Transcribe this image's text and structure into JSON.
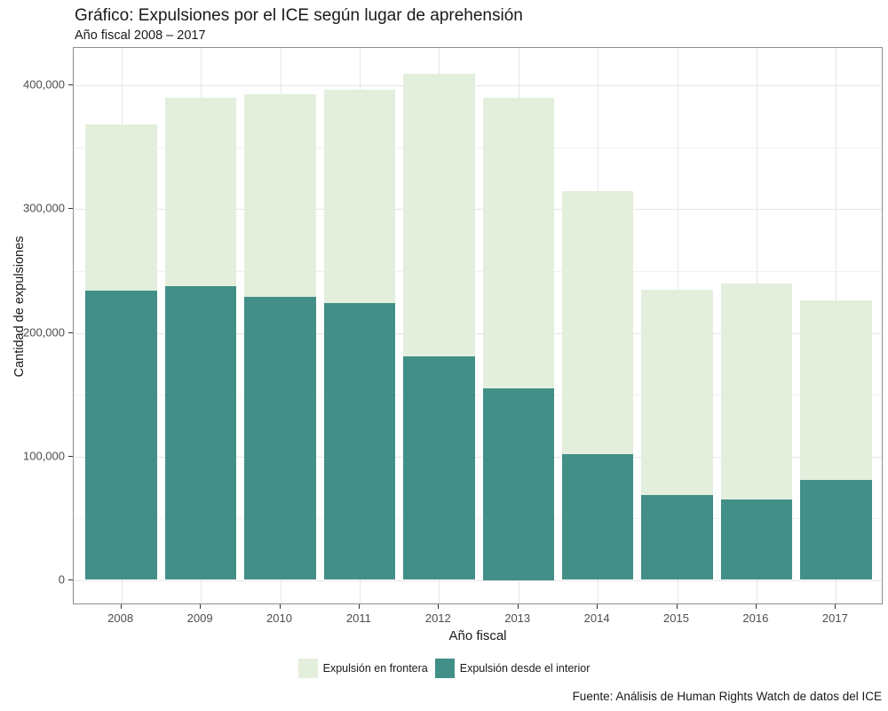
{
  "header": {
    "title": "Gráfico: Expulsiones por el ICE según lugar de aprehensión",
    "subtitle": "Año fiscal 2008 – 2017"
  },
  "caption": "Fuente: Análisis de Human Rights Watch de datos del ICE",
  "colors": {
    "border_series_fill": "#e3efdc",
    "interior_series_fill": "#428f88",
    "panel_border": "#8c8c8c",
    "grid_major": "#e6e6e6",
    "grid_minor": "#f2f2f2",
    "tick_mark": "#333333",
    "tick_label": "#4d4d4d",
    "text": "#1a1a1a",
    "background": "#ffffff"
  },
  "chart_data": {
    "type": "bar",
    "stacked": true,
    "title": "Gráfico: Expulsiones por el ICE según lugar de aprehensión",
    "subtitle": "Año fiscal 2008 – 2017",
    "xlabel": "Año fiscal",
    "ylabel": "Cantidad de expulsiones",
    "categories": [
      "2008",
      "2009",
      "2010",
      "2011",
      "2012",
      "2013",
      "2014",
      "2015",
      "2016",
      "2017"
    ],
    "series": [
      {
        "name": "Expulsión en frontera",
        "color": "#e3efdc",
        "stack_position": "top",
        "values": [
          135000,
          152000,
          164000,
          173000,
          229000,
          235000,
          213000,
          166000,
          175000,
          145000
        ]
      },
      {
        "name": "Expulsión desde el interior",
        "color": "#428f88",
        "stack_position": "bottom",
        "values": [
          234000,
          238000,
          229000,
          224000,
          181000,
          155000,
          102000,
          69000,
          65000,
          81000
        ]
      }
    ],
    "totals": [
      369000,
      390000,
      393000,
      397000,
      410000,
      390000,
      315000,
      235000,
      240000,
      226000
    ],
    "y_ticks": [
      {
        "value": 0,
        "label": "0"
      },
      {
        "value": 100000,
        "label": "100,000"
      },
      {
        "value": 200000,
        "label": "200,000"
      },
      {
        "value": 300000,
        "label": "300,000"
      },
      {
        "value": 400000,
        "label": "400,000"
      }
    ],
    "y_minor_ticks": [
      50000,
      150000,
      250000,
      350000
    ],
    "ylim": [
      -20500,
      430500
    ],
    "grid": true,
    "legend_position": "bottom",
    "source": "Fuente: Análisis de Human Rights Watch de datos del ICE"
  }
}
